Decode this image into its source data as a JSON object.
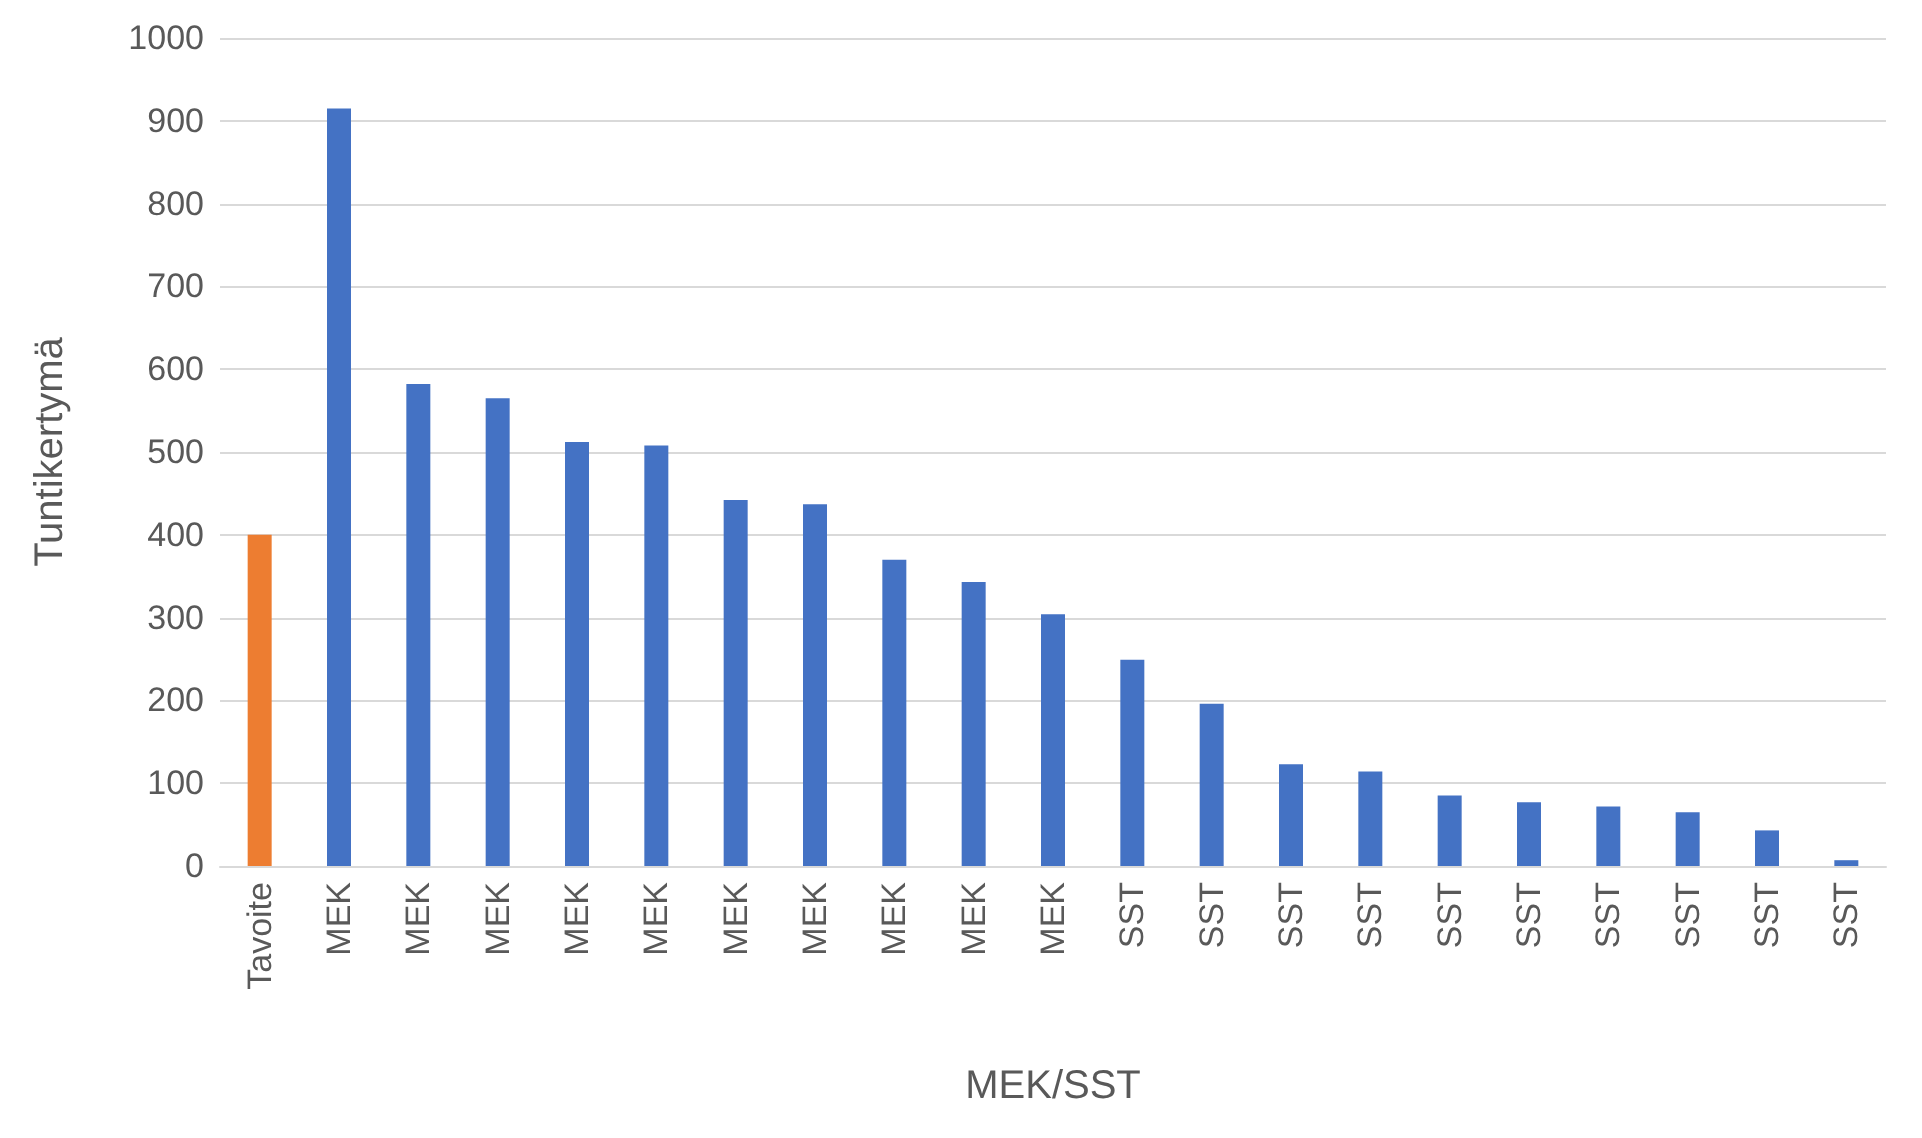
{
  "chart_data": {
    "type": "bar",
    "xlabel": "MEK/SST",
    "ylabel": "Tuntikertymä",
    "categories": [
      "Tavoite",
      "MEK",
      "MEK",
      "MEK",
      "MEK",
      "MEK",
      "MEK",
      "MEK",
      "MEK",
      "MEK",
      "MEK",
      "SST",
      "SST",
      "SST",
      "SST",
      "SST",
      "SST",
      "SST",
      "SST",
      "SST",
      "SST"
    ],
    "values": [
      400,
      915,
      582,
      565,
      512,
      508,
      442,
      437,
      370,
      343,
      304,
      249,
      196,
      123,
      114,
      85,
      77,
      72,
      65,
      43,
      7
    ],
    "colors": [
      "#ed7d31",
      "#4472c4",
      "#4472c4",
      "#4472c4",
      "#4472c4",
      "#4472c4",
      "#4472c4",
      "#4472c4",
      "#4472c4",
      "#4472c4",
      "#4472c4",
      "#4472c4",
      "#4472c4",
      "#4472c4",
      "#4472c4",
      "#4472c4",
      "#4472c4",
      "#4472c4",
      "#4472c4",
      "#4472c4",
      "#4472c4"
    ],
    "ylim": [
      0,
      1000
    ],
    "yticks": [
      0,
      100,
      200,
      300,
      400,
      500,
      600,
      700,
      800,
      900,
      1000
    ],
    "grid": "y"
  }
}
